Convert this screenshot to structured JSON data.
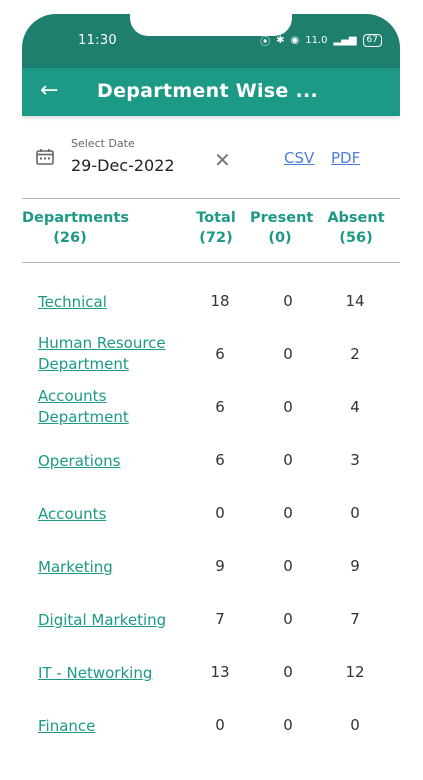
{
  "status_bar": {
    "time": "11:30",
    "net_speed": "11.0",
    "battery": "67"
  },
  "app_bar": {
    "title": "Department Wise ..."
  },
  "filters": {
    "date_label": "Select Date",
    "date_value": "29-Dec-2022",
    "csv": "CSV",
    "pdf": "PDF"
  },
  "table": {
    "headers": {
      "departments": "Departments",
      "departments_count": "(26)",
      "total": "Total",
      "total_count": "(72)",
      "present": "Present",
      "present_count": "(0)",
      "absent": "Absent",
      "absent_count": "(56)"
    },
    "rows": [
      {
        "name": "Technical",
        "total": "18",
        "present": "0",
        "absent": "14"
      },
      {
        "name": "Human Resource Department",
        "total": "6",
        "present": "0",
        "absent": "2"
      },
      {
        "name": "Accounts Department",
        "total": "6",
        "present": "0",
        "absent": "4"
      },
      {
        "name": "Operations",
        "total": "6",
        "present": "0",
        "absent": "3"
      },
      {
        "name": "Accounts",
        "total": "0",
        "present": "0",
        "absent": "0"
      },
      {
        "name": "Marketing",
        "total": "9",
        "present": "0",
        "absent": "9"
      },
      {
        "name": "Digital Marketing",
        "total": "7",
        "present": "0",
        "absent": "7"
      },
      {
        "name": "IT - Networking",
        "total": "13",
        "present": "0",
        "absent": "12"
      },
      {
        "name": "Finance",
        "total": "0",
        "present": "0",
        "absent": "0"
      }
    ]
  },
  "colors": {
    "accent": "#1c9a86",
    "status_bar": "#1e7f6f",
    "link": "#4a7fd6"
  }
}
